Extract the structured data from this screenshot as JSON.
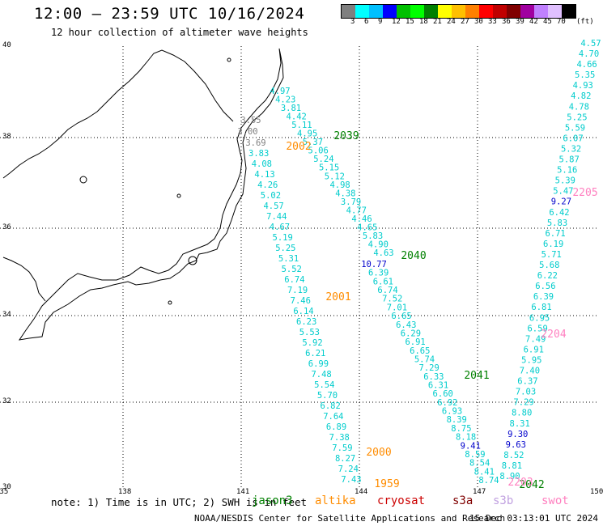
{
  "header": {
    "title": "12:00 – 23:59 UTC 10/16/2024",
    "subtitle": "12 hour collection of altimeter wave heights"
  },
  "colorbar": {
    "colors": [
      "#7f7f7f",
      "#00ffff",
      "#00c0ff",
      "#0000ff",
      "#00c000",
      "#00ff00",
      "#008000",
      "#ffff00",
      "#ffc000",
      "#ff8000",
      "#ff0000",
      "#c00000",
      "#800000",
      "#a000a0",
      "#c080ff",
      "#e0c0ff",
      "#000000"
    ],
    "labels": [
      "3",
      "6",
      "9",
      "12",
      "15",
      "18",
      "21",
      "24",
      "27",
      "30",
      "33",
      "36",
      "39",
      "42",
      "45",
      "70"
    ],
    "unit": "(ft)"
  },
  "axes": {
    "lat_labels": [
      "40",
      "38",
      "36",
      "34",
      "32",
      "30"
    ],
    "lon_labels": [
      "135",
      "138",
      "141",
      "144",
      "147",
      "150"
    ]
  },
  "tracks": [
    {
      "mission": "jason3",
      "color": "#00cccc",
      "values": [
        "4.97",
        "4.23",
        "3.81",
        "4.42",
        "5.11",
        "4.95",
        "5.37",
        "5.06",
        "5.24",
        "5.15",
        "5.12",
        "4.98",
        "4.38",
        "3.79",
        "4.77",
        "4.46",
        "4.65",
        "5.83",
        "4.90",
        "4.63"
      ]
    },
    {
      "mission": "jason3",
      "color": "#00cccc",
      "values": [
        "3.69",
        "3.83",
        "4.08",
        "4.13",
        "4.26",
        "5.02",
        "4.57",
        "7.44",
        "4.67",
        "5.19",
        "5.25",
        "5.31",
        "5.52",
        "6.74",
        "7.19",
        "7.46",
        "6.14",
        "6.23",
        "5.53",
        "5.92",
        "6.21",
        "6.99",
        "7.48",
        "5.54",
        "5.70",
        "6.82",
        "7.64",
        "6.89",
        "7.38",
        "7.59",
        "8.27",
        "7.24",
        "7.43"
      ]
    },
    {
      "mission": "jason3",
      "color": "#00cccc",
      "values": [
        "10.77",
        "6.39",
        "6.61",
        "6.74",
        "7.52",
        "7.01",
        "6.65",
        "6.43",
        "6.29",
        "6.91",
        "6.65",
        "5.74",
        "7.29",
        "6.33",
        "6.31",
        "6.60",
        "6.92",
        "6.93",
        "8.39",
        "8.75",
        "8.18",
        "9.41",
        "8.59",
        "8.54",
        "8.41",
        "8.74"
      ]
    },
    {
      "mission": "jason3",
      "color": "#00cccc",
      "values": [
        "4.57",
        "4.70",
        "4.66",
        "5.35",
        "4.93",
        "4.82",
        "4.78",
        "5.25",
        "5.59",
        "6.07",
        "5.32",
        "5.87",
        "5.16",
        "5.39",
        "5.47",
        "9.27",
        "6.42",
        "5.83",
        "6.71",
        "6.19",
        "5.71",
        "5.68",
        "6.22",
        "6.56",
        "6.39",
        "6.81",
        "6.95",
        "6.59",
        "7.49",
        "6.91",
        "5.95",
        "7.40",
        "6.37",
        "7.03",
        "7.29",
        "8.80",
        "8.31",
        "9.30",
        "9.63",
        "8.52",
        "8.81",
        "8.90"
      ]
    },
    {
      "mission": "jason3",
      "color": "#00cccc",
      "values": [
        "3.00",
        "3.55"
      ]
    }
  ],
  "pass_times": [
    {
      "time": "2039",
      "color": "#008000"
    },
    {
      "time": "2002",
      "color": "#ff8c00"
    },
    {
      "time": "2040",
      "color": "#008000"
    },
    {
      "time": "2001",
      "color": "#ff8c00"
    },
    {
      "time": "2041",
      "color": "#008000"
    },
    {
      "time": "2000",
      "color": "#ff8c00"
    },
    {
      "time": "1959",
      "color": "#ff8c00"
    },
    {
      "time": "2042",
      "color": "#008000"
    },
    {
      "time": "2205",
      "color": "#ff80c0"
    },
    {
      "time": "2204",
      "color": "#ff80c0"
    },
    {
      "time": "2203",
      "color": "#ff80c0"
    }
  ],
  "footer": {
    "note": "note: 1) Time is in UTC; 2) SWH is in feet",
    "legend": [
      {
        "name": "jason3",
        "color": "#008000"
      },
      {
        "name": "altika",
        "color": "#ff8c00"
      },
      {
        "name": "cryosat",
        "color": "#cc0000"
      },
      {
        "name": "s3a",
        "color": "#800000"
      },
      {
        "name": "s3b",
        "color": "#c0a0e0"
      },
      {
        "name": "swot",
        "color": "#ff80c0"
      }
    ],
    "credit": "NOAA/NESDIS Center for Satellite Applications and Research",
    "timestamp": "15 Dec 03:13:01 UTC 2024"
  }
}
